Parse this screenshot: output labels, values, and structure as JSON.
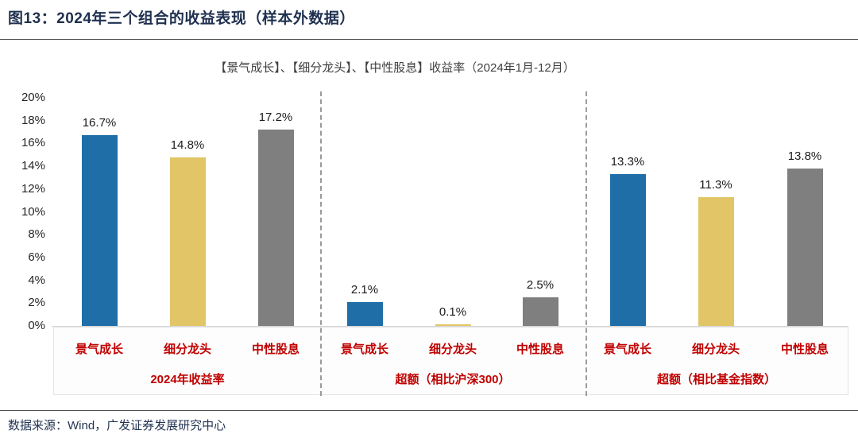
{
  "header": {
    "title": "图13：2024年三个组合的收益表现（样本外数据）"
  },
  "footer": {
    "source": "数据来源：Wind，广发证券发展研究中心"
  },
  "colors": {
    "series_blue": "#1F6EA8",
    "series_yellow": "#E2C566",
    "series_gray": "#7F7F7F",
    "category_label_red": "#C00000",
    "title_navy": "#1F3050"
  },
  "chart_data": {
    "type": "bar",
    "title": "【景气成长】、【细分龙头】、【中性股息】收益率（2024年1月-12月）",
    "ylim": [
      0,
      20
    ],
    "ytick_labels": [
      "0%",
      "2%",
      "4%",
      "6%",
      "8%",
      "10%",
      "12%",
      "14%",
      "16%",
      "18%",
      "20%"
    ],
    "grid": false,
    "legend": "none",
    "bar_colors": [
      "#1F6EA8",
      "#E2C566",
      "#7F7F7F"
    ],
    "groups": [
      {
        "label": "2024年收益率",
        "categories": [
          "景气成长",
          "细分龙头",
          "中性股息"
        ],
        "values": [
          16.7,
          14.8,
          17.2
        ],
        "value_labels": [
          "16.7%",
          "14.8%",
          "17.2%"
        ]
      },
      {
        "label": "超额（相比沪深300）",
        "categories": [
          "景气成长",
          "细分龙头",
          "中性股息"
        ],
        "values": [
          2.1,
          0.1,
          2.5
        ],
        "value_labels": [
          "2.1%",
          "0.1%",
          "2.5%"
        ]
      },
      {
        "label": "超额（相比基金指数）",
        "categories": [
          "景气成长",
          "细分龙头",
          "中性股息"
        ],
        "values": [
          13.3,
          11.3,
          13.8
        ],
        "value_labels": [
          "13.3%",
          "11.3%",
          "13.8%"
        ]
      }
    ]
  }
}
